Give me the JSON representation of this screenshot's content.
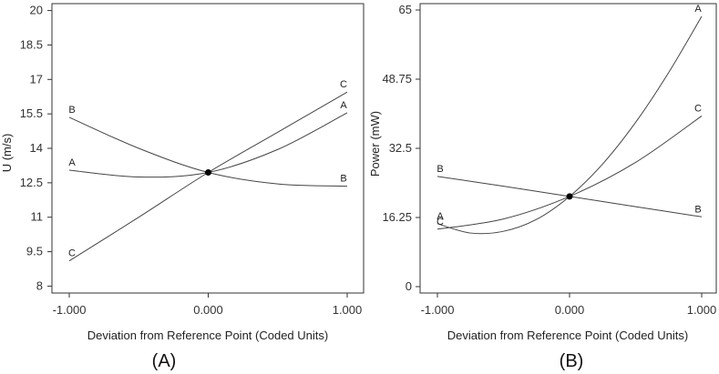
{
  "chart_data": [
    {
      "type": "line",
      "caption": "(A)",
      "xlabel": "Deviation from Reference Point (Coded Units)",
      "ylabel": "U (m/s)",
      "xlim": [
        -1,
        1
      ],
      "ylim": [
        7.7,
        20.3
      ],
      "xticks": [
        -1,
        0,
        1
      ],
      "xtick_labels": [
        "-1.000",
        "0.000",
        "1.000"
      ],
      "yticks": [
        8,
        9.5,
        11,
        12.5,
        14,
        15.5,
        17,
        18.5,
        20
      ],
      "ytick_labels": [
        "8",
        "9.5",
        "11",
        "12.5",
        "14",
        "15.5",
        "17",
        "18.5",
        "20"
      ],
      "grid": false,
      "reference_point": {
        "x": 0,
        "y": 12.95
      },
      "series": [
        {
          "name": "A",
          "x": [
            -1,
            -0.5,
            0,
            0.5,
            1
          ],
          "y": [
            13.05,
            12.75,
            12.95,
            13.95,
            15.55
          ]
        },
        {
          "name": "B",
          "x": [
            -1,
            -0.5,
            0,
            0.5,
            1
          ],
          "y": [
            15.35,
            14.0,
            12.95,
            12.45,
            12.35
          ]
        },
        {
          "name": "C",
          "x": [
            -1,
            -0.5,
            0,
            0.5,
            1
          ],
          "y": [
            9.1,
            11.0,
            12.95,
            14.7,
            16.45
          ]
        }
      ]
    },
    {
      "type": "line",
      "caption": "(B)",
      "xlabel": "Deviation from Reference Point (Coded Units)",
      "ylabel": "Power (mW)",
      "xlim": [
        -1,
        1
      ],
      "ylim": [
        -1.5,
        66.5
      ],
      "xticks": [
        -1,
        0,
        1
      ],
      "xtick_labels": [
        "-1.000",
        "0.000",
        "1.000"
      ],
      "yticks": [
        0,
        16.25,
        32.5,
        48.75,
        65
      ],
      "ytick_labels": [
        "0",
        "16.25",
        "32.5",
        "48.75",
        "65"
      ],
      "grid": false,
      "reference_point": {
        "x": 0,
        "y": 21.2
      },
      "series": [
        {
          "name": "A",
          "x": [
            -1,
            -0.75,
            -0.5,
            -0.25,
            0,
            0.25,
            0.5,
            0.75,
            1
          ],
          "y": [
            14.8,
            12.6,
            13.0,
            15.8,
            21.2,
            28.8,
            38.6,
            50.3,
            63.5
          ]
        },
        {
          "name": "B",
          "x": [
            -1,
            -0.5,
            0,
            0.5,
            1
          ],
          "y": [
            25.9,
            23.6,
            21.2,
            18.8,
            16.4
          ]
        },
        {
          "name": "C",
          "x": [
            -1,
            -0.5,
            0,
            0.5,
            1
          ],
          "y": [
            13.5,
            15.9,
            21.2,
            29.2,
            40.1
          ]
        }
      ]
    }
  ]
}
